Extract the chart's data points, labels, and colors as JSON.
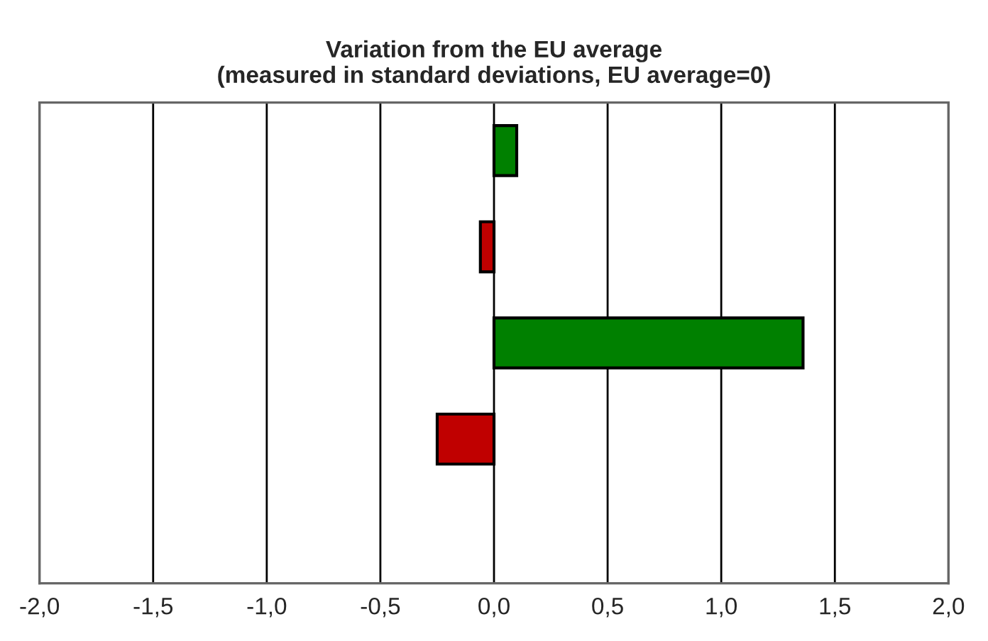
{
  "chart_data": {
    "type": "bar",
    "orientation": "horizontal",
    "title": "Variation from the EU average\n(measured in standard deviations, EU average=0)",
    "categories": [
      null,
      null,
      null,
      null,
      null
    ],
    "values": [
      0.1,
      -0.06,
      1.36,
      -0.25,
      null
    ],
    "colors": [
      "#008000",
      "#c00000",
      "#008000",
      "#c00000",
      "#c00000"
    ],
    "xlim": [
      -2,
      2
    ],
    "xticks": [
      {
        "value": -2,
        "label": "-2,0"
      },
      {
        "value": -1.5,
        "label": "-1,5"
      },
      {
        "value": -1,
        "label": "-1,0"
      },
      {
        "value": -0.5,
        "label": "-0,5"
      },
      {
        "value": 0,
        "label": "0,0"
      },
      {
        "value": 0.5,
        "label": "0,5"
      },
      {
        "value": 1,
        "label": "1,0"
      },
      {
        "value": 1.5,
        "label": "1,5"
      },
      {
        "value": 2,
        "label": "2,0"
      }
    ],
    "grid": "x",
    "legend": false
  }
}
